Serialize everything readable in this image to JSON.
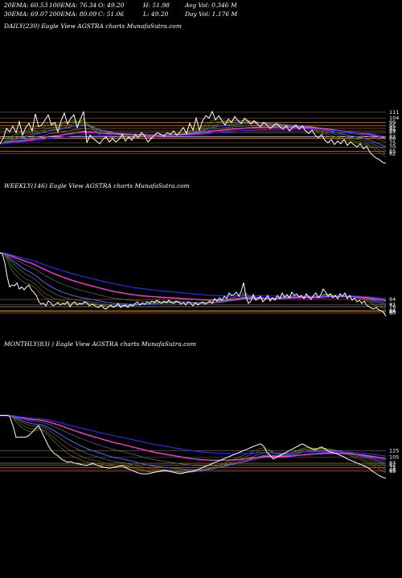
{
  "header": {
    "ema20": "20EMA: 60.53",
    "ema100": "100EMA: 76.34",
    "open": "O: 49.20",
    "high": "H: 51.98",
    "avgvol": "Avg Vol: 0.346  M",
    "ema30": "30EMA: 69.07",
    "ema200": "200EMA: 80.09",
    "close": "C: 51.06",
    "low": "L: 49.20",
    "dayvol": "Day Vol: 1.176  M"
  },
  "chart_data": [
    {
      "type": "line",
      "title": "DAILY(230) Eagle   View  AGSTRA charts MunafaSutra.com",
      "x": [
        0,
        4,
        8,
        12,
        16,
        20,
        24,
        28,
        32,
        36,
        40,
        44,
        48,
        52,
        56,
        60,
        64,
        68,
        72,
        76,
        80,
        84,
        88,
        92,
        96,
        100,
        104,
        108,
        112,
        116,
        120,
        124,
        128,
        132,
        136,
        140,
        144,
        148,
        152,
        156,
        160,
        164,
        168,
        172,
        176,
        180,
        184,
        188,
        192,
        196,
        200,
        204,
        208,
        212,
        216,
        220,
        224,
        228,
        232,
        236,
        240,
        244,
        248,
        252,
        256,
        260,
        264,
        268,
        272,
        276,
        280,
        284,
        288,
        292,
        296,
        300,
        304,
        308,
        312,
        316,
        320,
        324,
        328,
        332,
        336,
        340,
        344,
        348,
        352,
        356,
        360,
        364,
        368,
        372,
        376,
        380,
        384,
        388,
        392,
        396,
        400,
        404,
        408,
        412,
        416,
        420,
        424,
        428,
        432,
        436,
        440,
        444,
        448,
        452,
        456,
        460,
        464,
        468,
        472,
        476,
        480
      ],
      "price": [
        74,
        80,
        92,
        88,
        95,
        87,
        100,
        84,
        93,
        98,
        89,
        109,
        94,
        96,
        102,
        108,
        96,
        99,
        88,
        101,
        110,
        97,
        104,
        108,
        93,
        103,
        112,
        75,
        84,
        80,
        77,
        74,
        79,
        82,
        76,
        80,
        76,
        79,
        85,
        77,
        82,
        78,
        85,
        81,
        87,
        83,
        76,
        80,
        84,
        87,
        85,
        83,
        87,
        85,
        89,
        84,
        88,
        93,
        86,
        98,
        90,
        104,
        90,
        101,
        107,
        104,
        112,
        102,
        107,
        101,
        96,
        103,
        99,
        106,
        101,
        98,
        104,
        101,
        97,
        101,
        97,
        94,
        99,
        96,
        92,
        95,
        98,
        94,
        91,
        95,
        89,
        93,
        96,
        91,
        95,
        89,
        86,
        90,
        84,
        81,
        85,
        78,
        75,
        79,
        73,
        77,
        74,
        79,
        72,
        76,
        73,
        70,
        74,
        68,
        71,
        64,
        60,
        57,
        55,
        52,
        51
      ],
      "grid_levels": [
        111,
        104,
        99,
        95,
        92,
        89,
        87,
        82,
        80,
        75,
        70,
        65,
        62
      ],
      "tick_labels": [
        "111",
        "104",
        "99",
        "95",
        "92",
        "89",
        "87",
        "82",
        "80",
        "75",
        "70",
        "65",
        "62"
      ],
      "ylim": [
        40,
        125
      ]
    },
    {
      "type": "line",
      "title": "WEEKLY(146) Eagle   View  AGSTRA charts MunafaSutra.com",
      "x": [
        0,
        3,
        6,
        9,
        12,
        15,
        18,
        21,
        24,
        27,
        30,
        33,
        36,
        39,
        42,
        45,
        48,
        51,
        54,
        57,
        60,
        63,
        66,
        69,
        72,
        75,
        78,
        81,
        84,
        87,
        90,
        93,
        96,
        99,
        102,
        105,
        108,
        111,
        114,
        117,
        120,
        123,
        126,
        129,
        132,
        135,
        138,
        141,
        144,
        147,
        150,
        153,
        156,
        159,
        162,
        165,
        168,
        171,
        174,
        177,
        180,
        183,
        186,
        189,
        192,
        195,
        198,
        201,
        204,
        207,
        210,
        213,
        216,
        219,
        222,
        225,
        228,
        231,
        234,
        237,
        240,
        243,
        246,
        249,
        252,
        255,
        258,
        261,
        264,
        267,
        270,
        273,
        276,
        279,
        282,
        285,
        288,
        291,
        294,
        297,
        300,
        303,
        306,
        309,
        312,
        315,
        318,
        321,
        324,
        327,
        330,
        333,
        336,
        339,
        342,
        345,
        348,
        351,
        354,
        357,
        360,
        363,
        366,
        369,
        372,
        375,
        378,
        381,
        384,
        387,
        390,
        393,
        396,
        399,
        402,
        405,
        408,
        411,
        414,
        417,
        420,
        423,
        426,
        429,
        432,
        435,
        438,
        441,
        444,
        447,
        450,
        453,
        456,
        459,
        462,
        465,
        468,
        471,
        474,
        477,
        480
      ],
      "price": [
        210,
        208,
        185,
        150,
        125,
        130,
        128,
        135,
        120,
        125,
        118,
        125,
        130,
        118,
        112,
        105,
        90,
        82,
        85,
        78,
        90,
        86,
        78,
        82,
        86,
        80,
        84,
        82,
        88,
        76,
        84,
        88,
        80,
        84,
        82,
        88,
        86,
        78,
        82,
        80,
        76,
        74,
        80,
        72,
        70,
        76,
        80,
        74,
        78,
        84,
        74,
        78,
        80,
        74,
        82,
        78,
        84,
        88,
        80,
        86,
        82,
        88,
        84,
        90,
        86,
        92,
        88,
        84,
        90,
        86,
        92,
        86,
        84,
        90,
        88,
        82,
        86,
        80,
        88,
        84,
        78,
        86,
        80,
        84,
        88,
        82,
        86,
        90,
        84,
        96,
        90,
        98,
        92,
        102,
        96,
        110,
        104,
        106,
        112,
        102,
        114,
        136,
        100,
        84,
        90,
        106,
        92,
        96,
        102,
        88,
        94,
        104,
        90,
        98,
        92,
        104,
        96,
        110,
        100,
        106,
        98,
        112,
        104,
        108,
        100,
        104,
        96,
        108,
        100,
        94,
        104,
        110,
        98,
        106,
        120,
        112,
        102,
        108,
        98,
        104,
        96,
        108,
        102,
        110,
        96,
        104,
        92,
        98,
        88,
        92,
        84,
        90,
        80,
        76,
        72,
        70,
        74,
        68,
        66,
        62,
        52
      ],
      "grid_levels": [
        94,
        81,
        76,
        66,
        64,
        60
      ],
      "tick_labels": [
        "94",
        "81",
        "76",
        "66",
        "64",
        "60"
      ],
      "ylim": [
        40,
        240
      ]
    },
    {
      "type": "line",
      "title": "MONTHLY(83)                   ) Eagle   View  AGSTRA charts MunafaSutra.com",
      "x": [
        0,
        4,
        8,
        12,
        16,
        20,
        24,
        28,
        32,
        36,
        40,
        44,
        48,
        52,
        56,
        60,
        64,
        68,
        72,
        76,
        80,
        84,
        88,
        92,
        96,
        100,
        104,
        108,
        112,
        116,
        120,
        124,
        128,
        132,
        136,
        140,
        144,
        148,
        152,
        156,
        160,
        164,
        168,
        172,
        176,
        180,
        184,
        188,
        192,
        196,
        200,
        204,
        208,
        212,
        216,
        220,
        224,
        228,
        232,
        236,
        240,
        244,
        248,
        252,
        256,
        260,
        264,
        268,
        272,
        276,
        280,
        284,
        288,
        292,
        296,
        300,
        304,
        308,
        312,
        316,
        320,
        324,
        328,
        332,
        336,
        340,
        344,
        348,
        352,
        356,
        360,
        364,
        368,
        372,
        376,
        380,
        384,
        388,
        392,
        396,
        400,
        404,
        408,
        412,
        416,
        420,
        424,
        428,
        432,
        436,
        440,
        444,
        448,
        452,
        456,
        460,
        464,
        468,
        472,
        476,
        480
      ],
      "price": [
        230,
        230,
        230,
        228,
        200,
        165,
        165,
        165,
        165,
        170,
        180,
        190,
        200,
        180,
        160,
        140,
        125,
        115,
        110,
        100,
        95,
        90,
        92,
        88,
        86,
        84,
        82,
        80,
        84,
        86,
        82,
        78,
        76,
        74,
        72,
        74,
        76,
        78,
        80,
        74,
        70,
        66,
        62,
        58,
        56,
        55,
        56,
        58,
        60,
        62,
        64,
        66,
        64,
        62,
        60,
        58,
        56,
        58,
        60,
        62,
        64,
        66,
        70,
        74,
        78,
        82,
        86,
        90,
        94,
        98,
        102,
        106,
        110,
        114,
        118,
        122,
        126,
        130,
        134,
        138,
        142,
        145,
        138,
        120,
        110,
        100,
        105,
        110,
        115,
        120,
        125,
        130,
        135,
        140,
        145,
        140,
        135,
        130,
        128,
        132,
        136,
        130,
        124,
        120,
        118,
        114,
        110,
        106,
        100,
        96,
        92,
        88,
        84,
        80,
        76,
        70,
        62,
        56,
        50,
        45,
        42
      ],
      "grid_levels": [
        125,
        105,
        87,
        82,
        74,
        66,
        63
      ],
      "tick_labels": [
        "125",
        "105",
        "87",
        "82",
        "74",
        "66",
        "63"
      ],
      "ylim": [
        20,
        260
      ]
    }
  ]
}
